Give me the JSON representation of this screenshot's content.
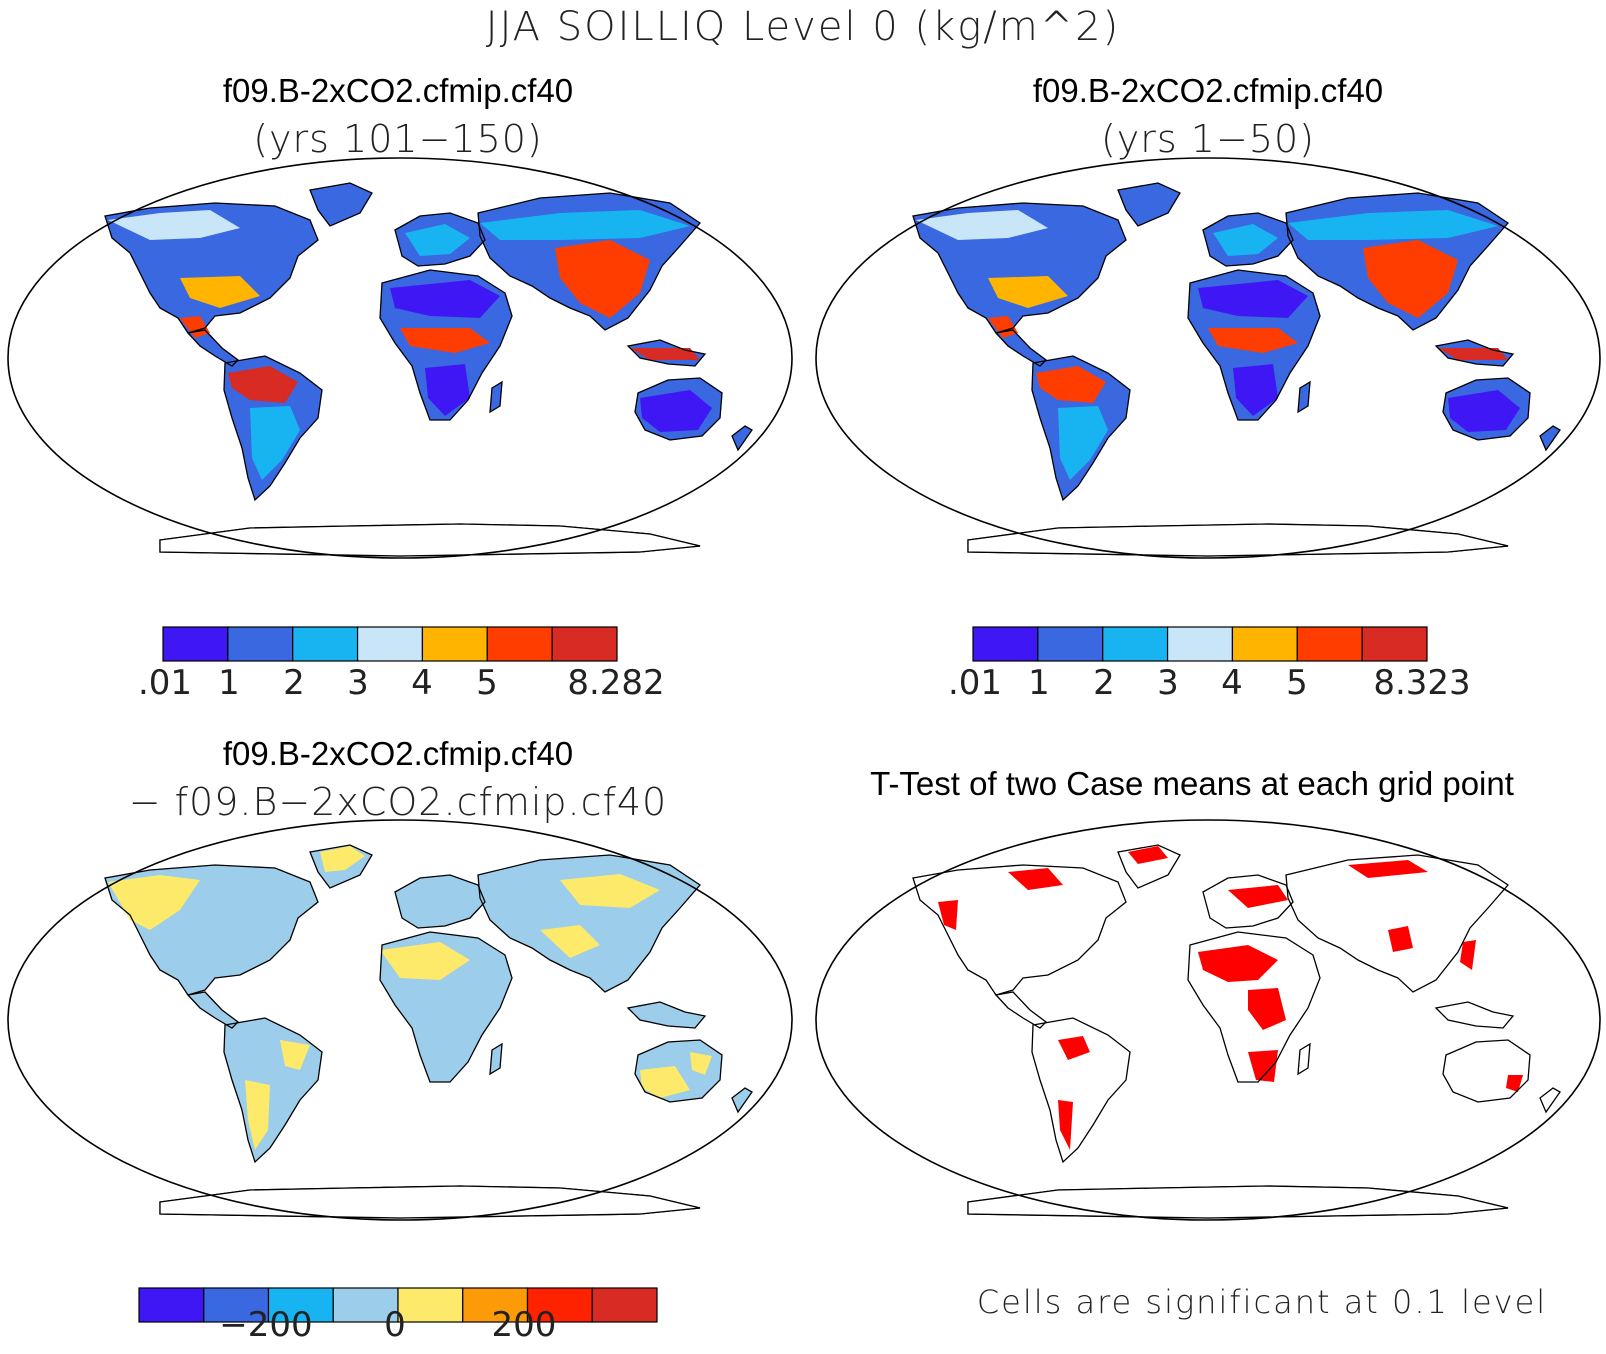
{
  "title": "JJA SOILLIQ Level 0 (kg/m^2)",
  "panels": {
    "top_left": {
      "title": "f09.B-2xCO2.cfmip.cf40",
      "subtitle": "(yrs 101−150)",
      "colorbar": {
        "colors": [
          "#3f17f5",
          "#3a68e0",
          "#18b4f2",
          "#c8e6f7",
          "#ffb400",
          "#ff3d00",
          "#d72b24"
        ],
        "tick_labels": [
          ".01",
          "1",
          "2",
          "3",
          "4",
          "5",
          "8.282"
        ]
      }
    },
    "top_right": {
      "title": "f09.B-2xCO2.cfmip.cf40",
      "subtitle": "(yrs 1−50)",
      "colorbar": {
        "colors": [
          "#3f17f5",
          "#3a68e0",
          "#18b4f2",
          "#c8e6f7",
          "#ffb400",
          "#ff3d00",
          "#d72b24"
        ],
        "tick_labels": [
          ".01",
          "1",
          "2",
          "3",
          "4",
          "5",
          "8.323"
        ]
      }
    },
    "bottom_left": {
      "title": "f09.B-2xCO2.cfmip.cf40",
      "subtitle": "− f09.B−2xCO2.cfmip.cf40",
      "colorbar": {
        "colors": [
          "#3f17f5",
          "#3a68e0",
          "#18b4f2",
          "#9ccdea",
          "#fdea6a",
          "#fd9a08",
          "#ff2200",
          "#d72b24"
        ],
        "tick_labels": [
          "−200",
          "0",
          "200"
        ]
      }
    },
    "bottom_right": {
      "title": "T-Test of two Case means at each grid point",
      "note": "Cells are significant at 0.1 level",
      "significant_color": "#ff0000"
    }
  }
}
